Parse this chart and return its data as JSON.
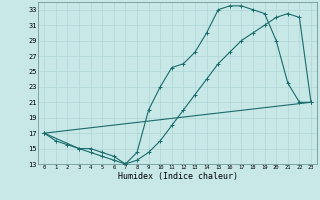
{
  "xlabel": "Humidex (Indice chaleur)",
  "bg_color": "#c8e8e8",
  "grid_color": "#b0d4d4",
  "line_color": "#1a6b6b",
  "xlim": [
    -0.5,
    23.5
  ],
  "ylim": [
    13,
    34
  ],
  "yticks": [
    13,
    15,
    17,
    19,
    21,
    23,
    25,
    27,
    29,
    31,
    33
  ],
  "xticks": [
    0,
    1,
    2,
    3,
    4,
    5,
    6,
    7,
    8,
    9,
    10,
    11,
    12,
    13,
    14,
    15,
    16,
    17,
    18,
    19,
    20,
    21,
    22,
    23
  ],
  "curve1_x": [
    0,
    1,
    2,
    3,
    4,
    5,
    6,
    7,
    8,
    9,
    10,
    11,
    12,
    13,
    14,
    15,
    16,
    17,
    18,
    19,
    20,
    21,
    22,
    23
  ],
  "curve1_y": [
    17,
    16,
    15.5,
    15,
    15,
    14.5,
    14,
    13,
    14.5,
    20,
    23,
    25.5,
    26,
    27.5,
    30,
    33,
    33.5,
    33.5,
    33,
    32.5,
    29,
    23.5,
    21,
    21
  ],
  "curve2_x": [
    0,
    3,
    4,
    5,
    6,
    7,
    8,
    9,
    10,
    11,
    12,
    13,
    14,
    15,
    16,
    17,
    18,
    19,
    20,
    21,
    22,
    23
  ],
  "curve2_y": [
    17,
    15,
    14.5,
    14,
    13.5,
    13,
    13.5,
    14.5,
    16,
    18,
    20,
    22,
    24,
    26,
    27.5,
    29,
    30,
    31,
    32,
    32.5,
    32,
    21
  ],
  "curve3_x": [
    0,
    23
  ],
  "curve3_y": [
    17,
    21
  ]
}
